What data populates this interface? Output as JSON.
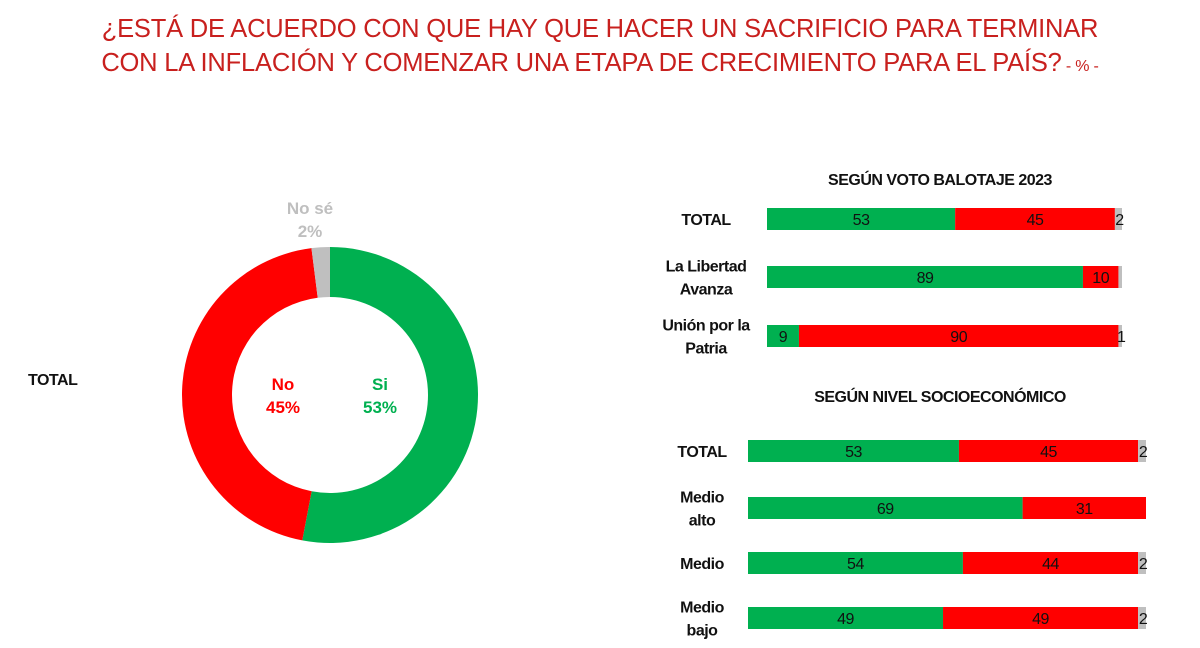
{
  "title": {
    "line1": "¿ESTÁ DE ACUERDO CON QUE HAY QUE HACER UN SACRIFICIO PARA TERMINAR",
    "line2": "CON LA INFLACIÓN Y COMENZAR UNA ETAPA DE CRECIMIENTO PARA EL PAÍS?",
    "unit": " - % -"
  },
  "colors": {
    "si": "#00b050",
    "no": "#ff0000",
    "nose": "#bfbfbf",
    "title": "#c8201e"
  },
  "chart_data": [
    {
      "type": "pie",
      "variant": "donut",
      "row_label": "TOTAL",
      "slices": [
        {
          "name": "Si",
          "value": 53,
          "label": "53%"
        },
        {
          "name": "No",
          "value": 45,
          "label": "45%"
        },
        {
          "name": "No sé",
          "value": 2,
          "label": "2%"
        }
      ]
    },
    {
      "type": "bar",
      "orientation": "horizontal",
      "stacked": true,
      "title": "SEGÚN VOTO BALOTAJE 2023",
      "categories": [
        "TOTAL",
        "La Libertad Avanza",
        "Unión por la Patria"
      ],
      "category_lines": [
        [
          "TOTAL"
        ],
        [
          "La Libertad",
          "Avanza"
        ],
        [
          "Unión por la",
          "Patria"
        ]
      ],
      "series": [
        {
          "key": "si",
          "values": [
            53,
            89,
            9
          ]
        },
        {
          "key": "no",
          "values": [
            45,
            10,
            90
          ]
        },
        {
          "key": "nose",
          "values": [
            2,
            1,
            1
          ]
        }
      ],
      "labels": [
        [
          "53",
          "45",
          "2"
        ],
        [
          "89",
          "10",
          ""
        ],
        [
          "9",
          "90",
          "1"
        ]
      ],
      "xlim": [
        0,
        100
      ]
    },
    {
      "type": "bar",
      "orientation": "horizontal",
      "stacked": true,
      "title": "SEGÚN NIVEL SOCIOECONÓMICO",
      "categories": [
        "TOTAL",
        "Medio alto",
        "Medio",
        "Medio bajo"
      ],
      "category_lines": [
        [
          "TOTAL"
        ],
        [
          "Medio",
          "alto"
        ],
        [
          "Medio"
        ],
        [
          "Medio",
          "bajo"
        ]
      ],
      "series": [
        {
          "key": "si",
          "values": [
            53,
            69,
            54,
            49
          ]
        },
        {
          "key": "no",
          "values": [
            45,
            31,
            44,
            49
          ]
        },
        {
          "key": "nose",
          "values": [
            2,
            0,
            2,
            2
          ]
        }
      ],
      "labels": [
        [
          "53",
          "45",
          "2"
        ],
        [
          "69",
          "31",
          ""
        ],
        [
          "54",
          "44",
          "2"
        ],
        [
          "49",
          "49",
          "2"
        ]
      ],
      "xlim": [
        0,
        100
      ]
    }
  ]
}
